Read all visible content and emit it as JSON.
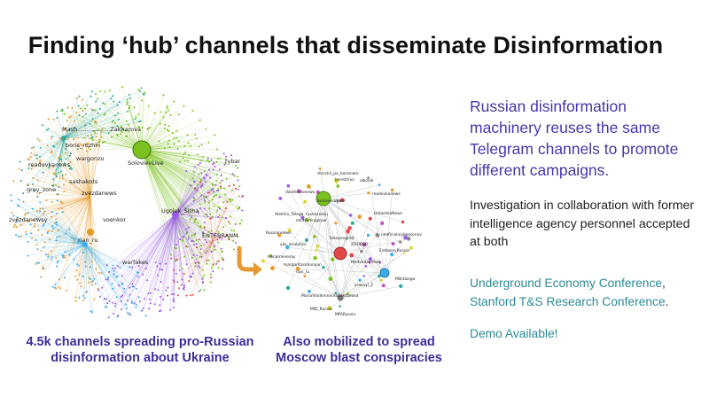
{
  "slide": {
    "title": "Finding ‘hub’ channels that disseminate Disinformation",
    "left_caption": "4.5k channels spreading pro-Russian disinformation about Ukraine",
    "middle_caption": "Also mobilized to spread Moscow blast conspiracies",
    "lead_text": "Russian disinformation machinery reuses the same Telegram channels to promote different campaigns.",
    "body_text": "Investigation in collaboration with former intelligence agency personnel accepted at both",
    "conference_1": "Underground Economy Conference",
    "separator": ",",
    "conference_2": "Stanford T&S Research Conference",
    "period": ".",
    "demo_text": "Demo Available!"
  },
  "big_network": {
    "labels": {
      "l1": "Mash..................Zakharova",
      "l2": "SolovievLive",
      "l3": "rybar",
      "l4": "readovkanews",
      "l5": "boris_rozhin",
      "l6": "sashakots",
      "l7": "zvezdanews",
      "l8": "voenkor",
      "l9": "rian_ru",
      "l10": "Ugolok_Sitha",
      "l11": "warfakes",
      "l12": "grey_zone",
      "l13": "wargonzo",
      "l14": "ENTEBRANM",
      "l15": "zvezdanewsy"
    }
  },
  "small_network": {
    "labels": {
      "s1": "starshii_po_bananam",
      "s2": "berezhnoi",
      "s3": "alkovik",
      "s4": "dasthedlonews",
      "s5": "SolovievLive",
      "s6": "rybar",
      "s7": "readovkanews",
      "s8": "Alekhin_Telega",
      "s9": "rusvesnasu",
      "s10": "contrudingsrpw",
      "s11": "OstashkoNews",
      "s12": "Russiannews",
      "s13": "Slavyangrad",
      "s14": "yko_analytics",
      "s15": "ZOOBRO",
      "s16": "neoficialniybezsonov",
      "s17": "MedvedevVesti",
      "s18": "Henamenesay",
      "s19": "EmbassyRussia",
      "s20": "margaritasimonyan",
      "s21": "rian_ru",
      "s22": "krasnyi_Z",
      "s23": "MariaVladimirovnaZakharova",
      "s24": "MID_Russia",
      "s25": "MFARussia",
      "s26": "Mikitaziga"
    }
  },
  "colors": {
    "title": "#111111",
    "caption": "#3f2e98",
    "lead": "#4a35a8",
    "link": "#2c8a96",
    "green": "#7cc21f",
    "purple": "#9a5ce6",
    "orange": "#e49a2a",
    "blue": "#3aaee8",
    "red": "#e14848",
    "teal": "#2fa89a",
    "arrow": "#e59a34"
  },
  "icons": {
    "arrow": "curved-arrow-right-icon"
  }
}
